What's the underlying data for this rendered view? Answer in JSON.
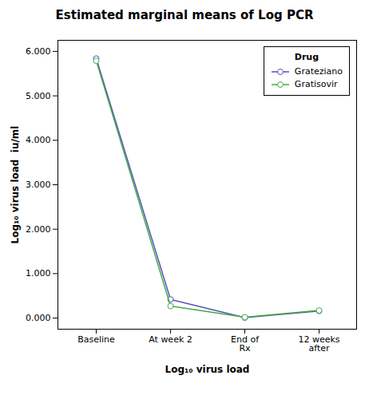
{
  "chart_data": {
    "type": "line",
    "title": "Estimated marginal means of Log PCR",
    "xlabel": "Log₁₀ virus load",
    "ylabel": "Log₁₀ virus load  iu/ml",
    "categories": [
      "Baseline",
      "At week 2",
      "End of\nRx",
      "12 weeks\nafter"
    ],
    "series": [
      {
        "name": "Grateziano",
        "color": "#5555bb",
        "values": [
          5.84,
          0.42,
          0.01,
          0.16
        ],
        "marker": "circle"
      },
      {
        "name": "Gratisovir",
        "color": "#44aa44",
        "values": [
          5.79,
          0.27,
          0.02,
          0.17
        ],
        "marker": "circle"
      }
    ],
    "ylim": [
      -0.25,
      6.25
    ],
    "yticks": [
      {
        "value": 0,
        "label": "0.000"
      },
      {
        "value": 1,
        "label": "1.000"
      },
      {
        "value": 2,
        "label": "2.000"
      },
      {
        "value": 3,
        "label": "3.000"
      },
      {
        "value": 4,
        "label": "4.000"
      },
      {
        "value": 5,
        "label": "5.000"
      },
      {
        "value": 6,
        "label": "6.000"
      }
    ],
    "legend": "upper right",
    "legend_title": "Drug",
    "grid": false
  }
}
